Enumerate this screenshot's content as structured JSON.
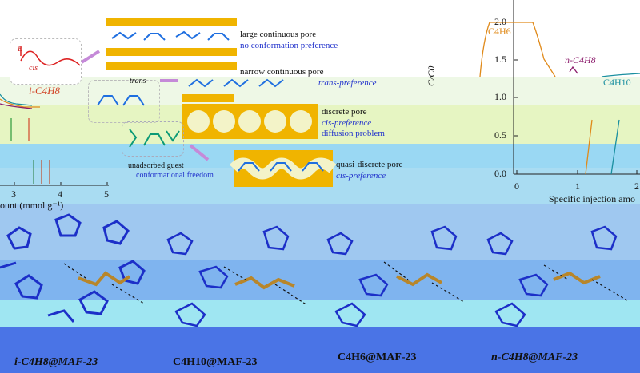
{
  "schematic": {
    "energy_label": "E",
    "cis_label": "cis",
    "trans_label": "trans",
    "pore1_line1": "large continuous pore",
    "pore1_line2": "no conformation preference",
    "pore2_line1": "narrow continuous pore",
    "pore2_line2": "trans-preference",
    "pore3_line1": "discrete pore",
    "pore3_line2": "cis-preference",
    "pore3_line3": "diffusion problem",
    "pore4_line1": "quasi-discrete pore",
    "pore4_line2": "cis-preference",
    "free_line1": "unadsorbed guest",
    "free_line2": "conformational freedom"
  },
  "left_plot": {
    "series_label": "i-C4H8",
    "xticks": [
      "3",
      "4",
      "5"
    ],
    "xlabel": "ount (mmol g⁻¹)"
  },
  "right_plot": {
    "ylabel": "C/C0",
    "yticks": [
      "2.0",
      "1.5",
      "1.0",
      "0.5",
      "0.0"
    ],
    "xticks": [
      "0",
      "1",
      "2"
    ],
    "xlabel": "Specific injection amo",
    "series": [
      {
        "name": "C4H6",
        "color": "#e08a1a"
      },
      {
        "name": "n-C4H8",
        "color": "#8b1a6b"
      },
      {
        "name": "C4H10",
        "color": "#1a8fa0"
      }
    ]
  },
  "structures": {
    "labels": [
      "i-C4H8@MAF-23",
      "C4H10@MAF-23",
      "C4H6@MAF-23",
      "n-C4H8@MAF-23"
    ]
  },
  "colors": {
    "band_green": "#e9f7d0",
    "band_blue": "#a8d8f0",
    "band_deep": "#4a74e6",
    "pore_yellow": "#f0b400",
    "molecule_blue": "#1f6fe0"
  }
}
